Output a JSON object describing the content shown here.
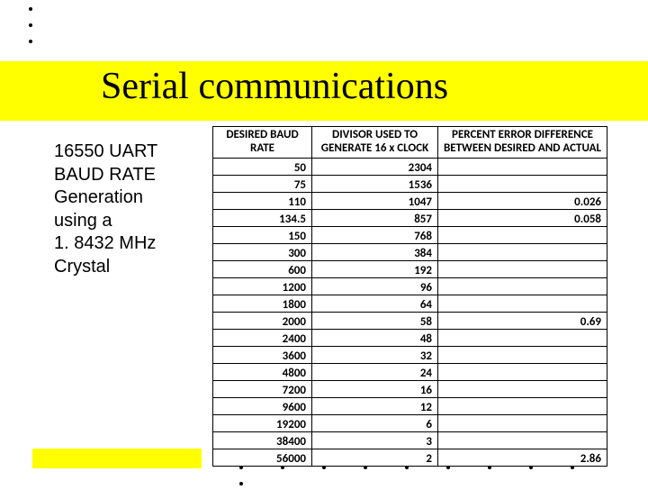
{
  "title": "Serial communications",
  "description": [
    "16550 UART",
    "BAUD RATE",
    "Generation",
    "using a",
    "1. 8432 MHz",
    "Crystal"
  ],
  "colors": {
    "highlight": "#ffff00",
    "background": "#ffffff",
    "text": "#000000",
    "border": "#000000"
  },
  "table": {
    "headers": [
      "DESIRED BAUD RATE",
      "DIVISOR USED TO GENERATE 16 x CLOCK",
      "PERCENT ERROR DIFFERENCE BETWEEN DESIRED AND ACTUAL"
    ],
    "rows": [
      {
        "baud": "50",
        "divisor": "2304",
        "error": ""
      },
      {
        "baud": "75",
        "divisor": "1536",
        "error": ""
      },
      {
        "baud": "110",
        "divisor": "1047",
        "error": "0.026"
      },
      {
        "baud": "134.5",
        "divisor": "857",
        "error": "0.058"
      },
      {
        "baud": "150",
        "divisor": "768",
        "error": ""
      },
      {
        "baud": "300",
        "divisor": "384",
        "error": ""
      },
      {
        "baud": "600",
        "divisor": "192",
        "error": ""
      },
      {
        "baud": "1200",
        "divisor": "96",
        "error": ""
      },
      {
        "baud": "1800",
        "divisor": "64",
        "error": ""
      },
      {
        "baud": "2000",
        "divisor": "58",
        "error": "0.69"
      },
      {
        "baud": "2400",
        "divisor": "48",
        "error": ""
      },
      {
        "baud": "3600",
        "divisor": "32",
        "error": ""
      },
      {
        "baud": "4800",
        "divisor": "24",
        "error": ""
      },
      {
        "baud": "7200",
        "divisor": "16",
        "error": ""
      },
      {
        "baud": "9600",
        "divisor": "12",
        "error": ""
      },
      {
        "baud": "19200",
        "divisor": "6",
        "error": ""
      },
      {
        "baud": "38400",
        "divisor": "3",
        "error": ""
      },
      {
        "baud": "56000",
        "divisor": "2",
        "error": "2.86"
      }
    ]
  }
}
